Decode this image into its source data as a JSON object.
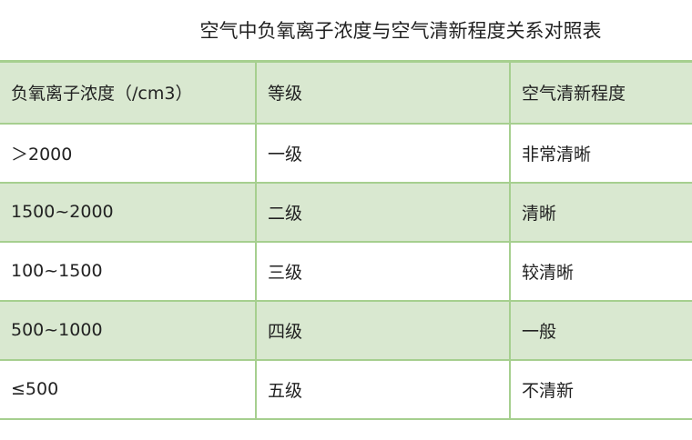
{
  "title": "空气中负氧离子浓度与空气清新程度关系对照表",
  "colors": {
    "border": "#a6cf8f",
    "shade": "#d9e8d0"
  },
  "header": [
    "负氧离子浓度（/cm3）",
    "等级",
    "空气清新程度"
  ],
  "rows": [
    [
      "＞2000",
      "一级",
      "非常清晰"
    ],
    [
      "1500~2000",
      "二级",
      "清晰"
    ],
    [
      "100~1500",
      "三级",
      "较清晰"
    ],
    [
      "500~1000",
      "四级",
      "一般"
    ],
    [
      "≤500",
      "五级",
      "不清新"
    ]
  ]
}
